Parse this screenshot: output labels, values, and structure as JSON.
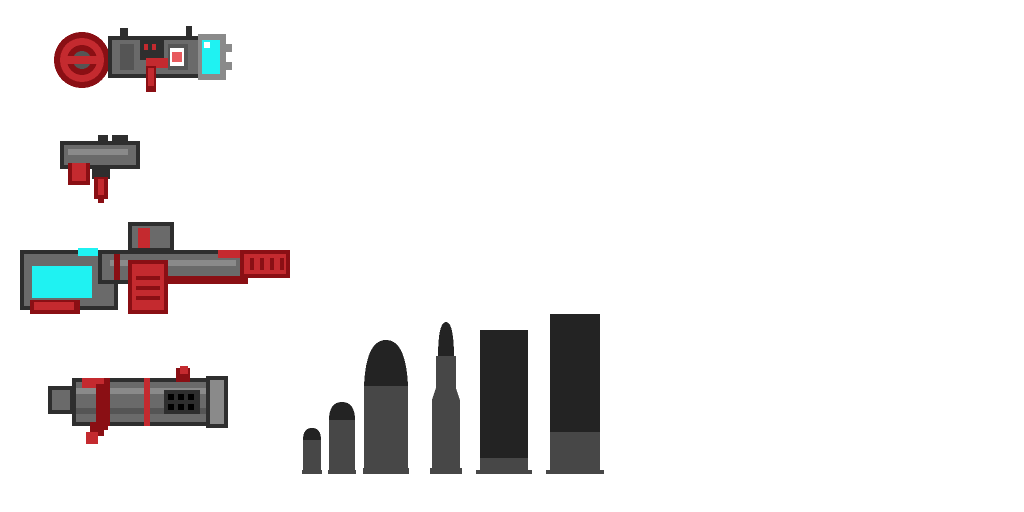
{
  "sprite_sheet": {
    "weapons": [
      {
        "name": "energy-cannon-icon"
      },
      {
        "name": "pistol-icon"
      },
      {
        "name": "plasma-rifle-icon"
      },
      {
        "name": "minigun-icon"
      }
    ],
    "ammo": [
      {
        "name": "small-pistol-round-icon"
      },
      {
        "name": "pistol-round-icon"
      },
      {
        "name": "large-round-icon"
      },
      {
        "name": "rifle-round-icon"
      },
      {
        "name": "shotgun-shell-icon"
      },
      {
        "name": "large-shotgun-shell-icon"
      }
    ],
    "colors": {
      "dark_red": "#8a0f14",
      "red": "#c42a2f",
      "light_red": "#e85a5e",
      "dark_gray": "#2e2e2e",
      "gray": "#555555",
      "mid_gray": "#6a6a6a",
      "light_gray": "#8a8a8a",
      "cyan": "#1ff2f2",
      "ammo_dark": "#232323",
      "ammo_body": "#474747"
    }
  }
}
